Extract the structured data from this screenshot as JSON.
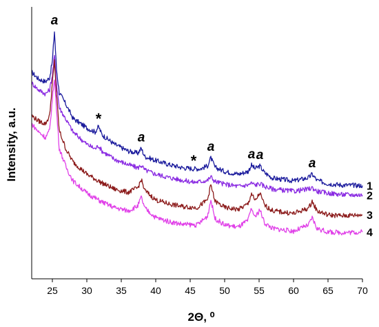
{
  "chart_data": {
    "type": "line",
    "title": "",
    "xlabel": "2Θ, ⁰",
    "ylabel": "Intensity, a.u.",
    "xlim": [
      22,
      70
    ],
    "ylim": [
      0,
      1
    ],
    "x_ticks": [
      "25",
      "30",
      "35",
      "40",
      "45",
      "50",
      "55",
      "60",
      "65",
      "70"
    ],
    "y_ticks_labeled": false,
    "grid": false,
    "legend": "none",
    "annotations": [
      {
        "text": "a",
        "x": 25.3
      },
      {
        "text": "*",
        "x": 31.7
      },
      {
        "text": "a",
        "x": 37.9
      },
      {
        "text": "*",
        "x": 45.5
      },
      {
        "text": "a",
        "x": 48.0
      },
      {
        "text": "a",
        "x": 53.9
      },
      {
        "text": "a",
        "x": 55.1
      },
      {
        "text": "a",
        "x": 62.7
      }
    ],
    "series": [
      {
        "label": "1",
        "color": "#1a1a9c",
        "x": [
          22,
          23,
          24,
          24.6,
          25.0,
          25.3,
          25.6,
          26,
          27,
          28,
          30,
          31.2,
          31.7,
          32.2,
          34,
          36,
          37.4,
          37.9,
          38.4,
          40,
          42,
          44,
          45.5,
          46.5,
          47.5,
          48.0,
          48.6,
          50,
          52,
          53.4,
          53.9,
          54.4,
          55.1,
          55.8,
          57,
          60,
          62.2,
          62.7,
          63.4,
          65,
          67,
          70
        ],
        "values": [
          0.76,
          0.735,
          0.725,
          0.74,
          0.8,
          0.91,
          0.77,
          0.685,
          0.64,
          0.59,
          0.555,
          0.54,
          0.56,
          0.53,
          0.495,
          0.47,
          0.462,
          0.48,
          0.45,
          0.435,
          0.42,
          0.408,
          0.405,
          0.405,
          0.415,
          0.445,
          0.41,
          0.395,
          0.385,
          0.395,
          0.418,
          0.405,
          0.415,
          0.39,
          0.37,
          0.36,
          0.372,
          0.385,
          0.362,
          0.35,
          0.345,
          0.343
        ]
      },
      {
        "label": "2",
        "color": "#8a2be2",
        "x": [
          22,
          23,
          24,
          24.6,
          25.0,
          25.3,
          25.6,
          26,
          27,
          28,
          30,
          31.2,
          31.7,
          32.2,
          34,
          36,
          37.4,
          37.9,
          38.4,
          40,
          42,
          44,
          45.5,
          46.5,
          47.5,
          48.0,
          48.6,
          50,
          52,
          53.4,
          53.9,
          54.4,
          55.1,
          55.8,
          57,
          60,
          62.2,
          62.7,
          63.4,
          65,
          67,
          70
        ],
        "values": [
          0.72,
          0.695,
          0.68,
          0.695,
          0.75,
          0.82,
          0.72,
          0.63,
          0.585,
          0.54,
          0.495,
          0.478,
          0.49,
          0.47,
          0.44,
          0.42,
          0.408,
          0.418,
          0.4,
          0.385,
          0.372,
          0.362,
          0.355,
          0.358,
          0.362,
          0.375,
          0.358,
          0.348,
          0.34,
          0.345,
          0.352,
          0.345,
          0.35,
          0.34,
          0.33,
          0.322,
          0.33,
          0.335,
          0.322,
          0.315,
          0.31,
          0.308
        ]
      },
      {
        "label": "3",
        "color": "#8b1a1a",
        "x": [
          22,
          23,
          24,
          24.6,
          25.0,
          25.3,
          25.6,
          26,
          27,
          28,
          30,
          32,
          34,
          36,
          37.4,
          37.9,
          38.4,
          40,
          42,
          44,
          46,
          47.5,
          48.0,
          48.6,
          50,
          52,
          53.4,
          53.9,
          54.4,
          55.1,
          55.8,
          57,
          60,
          62.2,
          62.7,
          63.4,
          65,
          67,
          70
        ],
        "values": [
          0.6,
          0.58,
          0.57,
          0.6,
          0.72,
          0.8,
          0.68,
          0.545,
          0.475,
          0.43,
          0.385,
          0.355,
          0.33,
          0.318,
          0.335,
          0.365,
          0.325,
          0.29,
          0.275,
          0.265,
          0.262,
          0.29,
          0.345,
          0.285,
          0.262,
          0.255,
          0.275,
          0.315,
          0.285,
          0.315,
          0.27,
          0.25,
          0.24,
          0.26,
          0.285,
          0.25,
          0.235,
          0.232,
          0.235
        ]
      },
      {
        "label": "4",
        "color": "#e040e8",
        "x": [
          22,
          23,
          24,
          24.6,
          25.0,
          25.3,
          25.6,
          26,
          27,
          28,
          30,
          32,
          34,
          36,
          37.4,
          37.9,
          38.4,
          40,
          42,
          44,
          46,
          47.5,
          48.0,
          48.6,
          50,
          52,
          53.4,
          53.9,
          54.4,
          55.1,
          55.8,
          57,
          60,
          62.2,
          62.7,
          63.4,
          65,
          67,
          70
        ],
        "values": [
          0.57,
          0.54,
          0.52,
          0.545,
          0.66,
          0.74,
          0.62,
          0.48,
          0.41,
          0.36,
          0.315,
          0.285,
          0.262,
          0.25,
          0.268,
          0.3,
          0.26,
          0.225,
          0.21,
          0.2,
          0.198,
          0.23,
          0.29,
          0.222,
          0.198,
          0.19,
          0.215,
          0.26,
          0.225,
          0.255,
          0.205,
          0.185,
          0.175,
          0.198,
          0.225,
          0.185,
          0.172,
          0.17,
          0.172
        ]
      }
    ]
  }
}
